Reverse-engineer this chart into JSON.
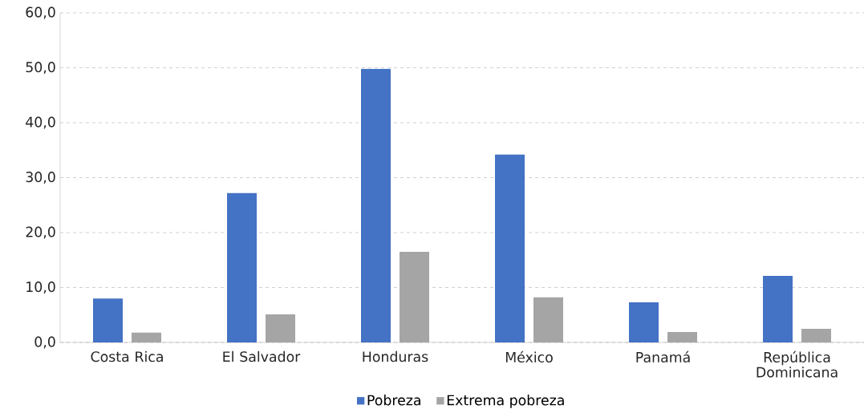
{
  "chart_data": {
    "type": "bar",
    "categories": [
      "Costa Rica",
      "El Salvador",
      "Honduras",
      "México",
      "Panamá",
      "República Dominicana"
    ],
    "series": [
      {
        "name": "Pobreza",
        "color": "#4472c4",
        "values": [
          8.0,
          27.2,
          49.8,
          34.2,
          7.3,
          12.1
        ]
      },
      {
        "name": "Extrema pobreza",
        "color": "#a5a5a5",
        "values": [
          1.8,
          5.1,
          16.5,
          8.2,
          1.9,
          2.5
        ]
      }
    ],
    "ylim": [
      0,
      60
    ],
    "yticks": [
      {
        "value": 0,
        "label": "0,0"
      },
      {
        "value": 10,
        "label": "10,0"
      },
      {
        "value": 20,
        "label": "20,0"
      },
      {
        "value": 30,
        "label": "30,0"
      },
      {
        "value": 40,
        "label": "40,0"
      },
      {
        "value": 50,
        "label": "50,0"
      },
      {
        "value": 60,
        "label": "60,0"
      }
    ],
    "grid": "y",
    "legend": "bottom"
  }
}
